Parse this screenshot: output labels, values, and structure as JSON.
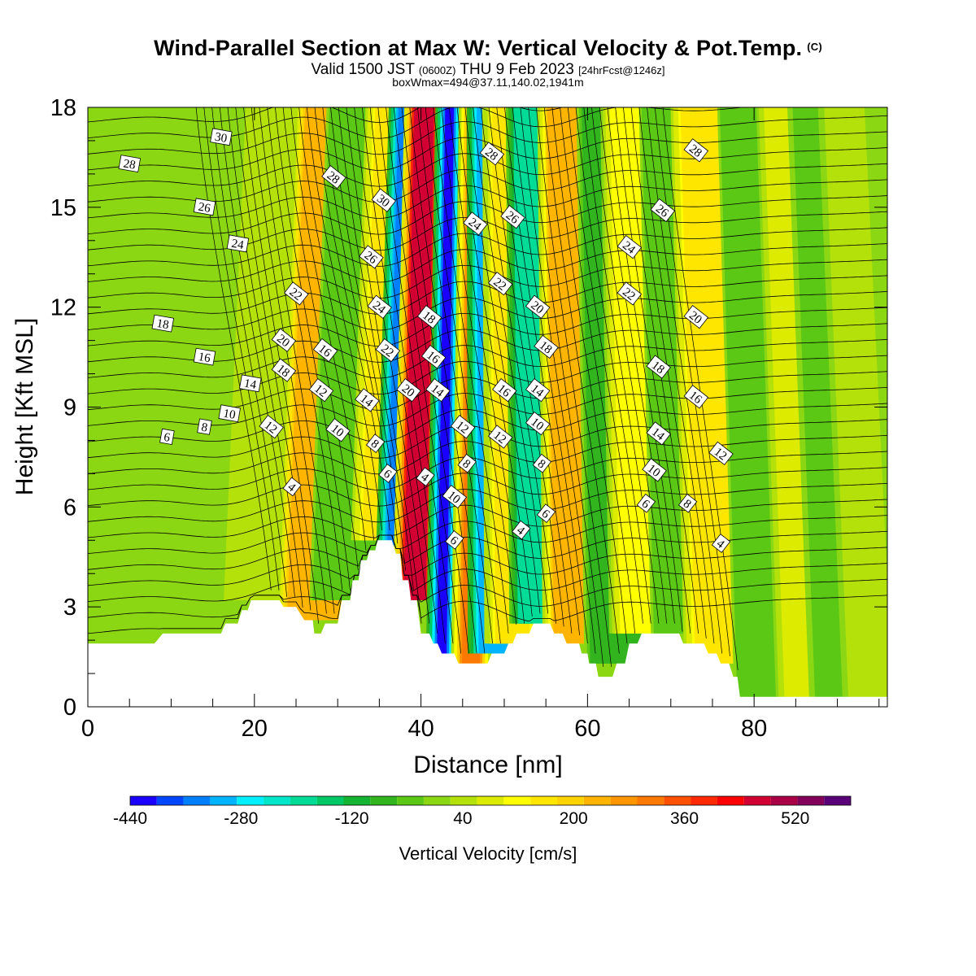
{
  "header": {
    "title": "Wind-Parallel Section at Max W: Vertical Velocity & Pot.Temp.",
    "copyright": "(C)",
    "valid_prefix": "Valid 1500 JST",
    "valid_utc": "(0600Z)",
    "valid_date": "THU 9 Feb 2023",
    "forecast": "[24hrFcst@1246z]",
    "box_info": "boxWmax=494@37.11,140.02,1941m"
  },
  "chart_data": {
    "type": "heatmap",
    "subtype": "vertical cross-section with filled vertical-velocity shading and potential-temperature contours",
    "xlabel": "Distance [nm]",
    "ylabel": "Height [Kft MSL]",
    "xlim": [
      0,
      96
    ],
    "ylim": [
      0,
      18
    ],
    "x_ticks": [
      0,
      20,
      40,
      60,
      80
    ],
    "y_ticks": [
      0,
      3,
      6,
      9,
      12,
      15,
      18
    ],
    "colorbar": {
      "label": "Vertical Velocity [cm/s]",
      "tick_labels": [
        "-440",
        "-280",
        "-120",
        "40",
        "200",
        "360",
        "520"
      ],
      "tick_values": [
        -440,
        -280,
        -120,
        40,
        200,
        360,
        520
      ],
      "range": [
        -440,
        600
      ],
      "step": 40,
      "colors": [
        "#1a00ff",
        "#0046ff",
        "#0080ff",
        "#00b4ff",
        "#00f0ff",
        "#00e6c8",
        "#00dc96",
        "#00c864",
        "#14b432",
        "#32b41e",
        "#5ac814",
        "#8cd714",
        "#b4e10a",
        "#dceb00",
        "#ffff00",
        "#ffe600",
        "#ffd200",
        "#ffb400",
        "#ff9600",
        "#ff7800",
        "#ff5000",
        "#ff2800",
        "#ff0000",
        "#d20032",
        "#aa0046",
        "#82005a",
        "#5a0078"
      ]
    },
    "terrain_kft": [
      [
        0,
        1.9
      ],
      [
        8,
        1.9
      ],
      [
        9,
        2.2
      ],
      [
        16,
        2.2
      ],
      [
        16.5,
        2.5
      ],
      [
        18,
        2.5
      ],
      [
        18.5,
        2.9
      ],
      [
        19.2,
        2.9
      ],
      [
        19.6,
        3.2
      ],
      [
        23,
        3.2
      ],
      [
        23.5,
        3.0
      ],
      [
        25,
        3.0
      ],
      [
        26,
        2.6
      ],
      [
        27,
        2.6
      ],
      [
        27.2,
        2.2
      ],
      [
        28,
        2.2
      ],
      [
        28.5,
        2.5
      ],
      [
        30,
        2.5
      ],
      [
        30.5,
        3.2
      ],
      [
        31.5,
        3.2
      ],
      [
        31.8,
        3.8
      ],
      [
        32.5,
        3.8
      ],
      [
        32.8,
        4.4
      ],
      [
        33.5,
        4.4
      ],
      [
        33.8,
        4.7
      ],
      [
        34.5,
        4.7
      ],
      [
        34.8,
        5.0
      ],
      [
        36.5,
        5.0
      ],
      [
        37,
        4.6
      ],
      [
        37.5,
        4.6
      ],
      [
        37.8,
        3.8
      ],
      [
        38.5,
        3.8
      ],
      [
        38.8,
        3.2
      ],
      [
        39.5,
        3.2
      ],
      [
        40,
        2.2
      ],
      [
        41,
        2.2
      ],
      [
        41.5,
        1.9
      ],
      [
        42,
        1.9
      ],
      [
        42.5,
        1.6
      ],
      [
        44,
        1.6
      ],
      [
        44.5,
        1.3
      ],
      [
        48,
        1.3
      ],
      [
        48.5,
        1.6
      ],
      [
        50,
        1.6
      ],
      [
        50.5,
        1.9
      ],
      [
        51,
        1.9
      ],
      [
        51.5,
        2.2
      ],
      [
        53,
        2.2
      ],
      [
        53.5,
        2.5
      ],
      [
        55.5,
        2.5
      ],
      [
        56,
        2.2
      ],
      [
        57,
        2.2
      ],
      [
        57.5,
        1.9
      ],
      [
        59,
        1.9
      ],
      [
        59.3,
        1.6
      ],
      [
        60,
        1.6
      ],
      [
        60.2,
        1.3
      ],
      [
        61,
        1.3
      ],
      [
        61.3,
        0.9
      ],
      [
        63,
        0.9
      ],
      [
        63.5,
        1.3
      ],
      [
        64.5,
        1.3
      ],
      [
        65,
        1.9
      ],
      [
        66,
        1.9
      ],
      [
        66.5,
        2.2
      ],
      [
        71,
        2.2
      ],
      [
        71.5,
        1.9
      ],
      [
        74,
        1.9
      ],
      [
        74.5,
        1.6
      ],
      [
        75.5,
        1.6
      ],
      [
        76,
        1.3
      ],
      [
        77,
        1.3
      ],
      [
        77.5,
        0.9
      ],
      [
        78,
        0.9
      ],
      [
        78.3,
        0.3
      ],
      [
        96,
        0.3
      ]
    ],
    "vertical_velocity_bands": [
      {
        "x_low": 6,
        "x_high": 7,
        "w_max": 20
      },
      {
        "x_low": 11,
        "x_high": 11,
        "w_max": 20
      },
      {
        "x_low": 17,
        "x_high": 23,
        "w_max": 60
      },
      {
        "x_low": 24,
        "x_high": 30,
        "w_max": 260
      },
      {
        "x_low": 28,
        "x_high": 34,
        "w_max": -40
      },
      {
        "x_low": 33,
        "x_high": 37,
        "w_max": 180
      },
      {
        "x_low": 36,
        "x_high": 39,
        "w_max": -360
      },
      {
        "x_low": 38,
        "x_high": 40.5,
        "w_max": 494
      },
      {
        "x_low": 42,
        "x_high": 43,
        "w_max": -420
      },
      {
        "x_low": 45,
        "x_high": 47,
        "w_max": 340
      },
      {
        "x_low": 47,
        "x_high": 51,
        "w_max": -320
      },
      {
        "x_low": 49,
        "x_high": 53,
        "w_max": 160
      },
      {
        "x_low": 52,
        "x_high": 56,
        "w_max": -200
      },
      {
        "x_low": 56,
        "x_high": 61,
        "w_max": 240
      },
      {
        "x_low": 61,
        "x_high": 66,
        "w_max": -80
      },
      {
        "x_low": 64,
        "x_high": 70,
        "w_max": 120
      },
      {
        "x_low": 69,
        "x_high": 73,
        "w_max": -40
      },
      {
        "x_low": 73,
        "x_high": 79,
        "w_max": 180
      },
      {
        "x_low": 79,
        "x_high": 83,
        "w_max": -40
      },
      {
        "x_low": 84,
        "x_high": 87,
        "w_max": 100
      },
      {
        "x_low": 88,
        "x_high": 90,
        "w_max": -20
      },
      {
        "x_low": 92,
        "x_high": 96,
        "w_max": 60
      }
    ],
    "contour_labels": [
      {
        "text": "30",
        "x": 16,
        "y": 17.1
      },
      {
        "text": "28",
        "x": 5,
        "y": 16.3
      },
      {
        "text": "26",
        "x": 14,
        "y": 15.0
      },
      {
        "text": "24",
        "x": 18,
        "y": 13.9
      },
      {
        "text": "22",
        "x": 25,
        "y": 12.4
      },
      {
        "text": "20",
        "x": 23.5,
        "y": 11.0
      },
      {
        "text": "18",
        "x": 9,
        "y": 11.5
      },
      {
        "text": "16",
        "x": 14,
        "y": 10.5
      },
      {
        "text": "18",
        "x": 23.5,
        "y": 10.1
      },
      {
        "text": "16",
        "x": 28.5,
        "y": 10.7
      },
      {
        "text": "14",
        "x": 19.5,
        "y": 9.7
      },
      {
        "text": "12",
        "x": 28,
        "y": 9.5
      },
      {
        "text": "10",
        "x": 17,
        "y": 8.8
      },
      {
        "text": "8",
        "x": 14,
        "y": 8.4
      },
      {
        "text": "6",
        "x": 9.5,
        "y": 8.1
      },
      {
        "text": "12",
        "x": 22,
        "y": 8.4
      },
      {
        "text": "10",
        "x": 30,
        "y": 8.3
      },
      {
        "text": "4",
        "x": 24.5,
        "y": 6.6
      },
      {
        "text": "28",
        "x": 29.5,
        "y": 15.9
      },
      {
        "text": "30",
        "x": 35.5,
        "y": 15.2
      },
      {
        "text": "26",
        "x": 34,
        "y": 13.5
      },
      {
        "text": "24",
        "x": 35,
        "y": 12.0
      },
      {
        "text": "22",
        "x": 36,
        "y": 10.7
      },
      {
        "text": "14",
        "x": 33.5,
        "y": 9.2
      },
      {
        "text": "8",
        "x": 34.5,
        "y": 7.9
      },
      {
        "text": "6",
        "x": 36,
        "y": 7.0
      },
      {
        "text": "20",
        "x": 38.5,
        "y": 9.5
      },
      {
        "text": "18",
        "x": 41,
        "y": 11.7
      },
      {
        "text": "16",
        "x": 41.5,
        "y": 10.5
      },
      {
        "text": "14",
        "x": 42,
        "y": 9.5
      },
      {
        "text": "4",
        "x": 40.5,
        "y": 6.9
      },
      {
        "text": "12",
        "x": 45,
        "y": 8.4
      },
      {
        "text": "8",
        "x": 45.5,
        "y": 7.3
      },
      {
        "text": "10",
        "x": 44,
        "y": 6.3
      },
      {
        "text": "6",
        "x": 44,
        "y": 5.0
      },
      {
        "text": "28",
        "x": 48.5,
        "y": 16.6
      },
      {
        "text": "24",
        "x": 46.5,
        "y": 14.5
      },
      {
        "text": "26",
        "x": 51,
        "y": 14.7
      },
      {
        "text": "22",
        "x": 49.5,
        "y": 12.7
      },
      {
        "text": "20",
        "x": 54,
        "y": 12.0
      },
      {
        "text": "18",
        "x": 55,
        "y": 10.8
      },
      {
        "text": "16",
        "x": 50,
        "y": 9.5
      },
      {
        "text": "14",
        "x": 54,
        "y": 9.5
      },
      {
        "text": "12",
        "x": 49.5,
        "y": 8.1
      },
      {
        "text": "10",
        "x": 54,
        "y": 8.5
      },
      {
        "text": "8",
        "x": 54.5,
        "y": 7.3
      },
      {
        "text": "6",
        "x": 55,
        "y": 5.8
      },
      {
        "text": "4",
        "x": 52,
        "y": 5.3
      },
      {
        "text": "28",
        "x": 73,
        "y": 16.7
      },
      {
        "text": "26",
        "x": 69,
        "y": 14.9
      },
      {
        "text": "24",
        "x": 65,
        "y": 13.8
      },
      {
        "text": "22",
        "x": 65,
        "y": 12.4
      },
      {
        "text": "20",
        "x": 73,
        "y": 11.7
      },
      {
        "text": "18",
        "x": 68.5,
        "y": 10.2
      },
      {
        "text": "16",
        "x": 73,
        "y": 9.3
      },
      {
        "text": "14",
        "x": 68.5,
        "y": 8.2
      },
      {
        "text": "12",
        "x": 76,
        "y": 7.6
      },
      {
        "text": "10",
        "x": 68,
        "y": 7.1
      },
      {
        "text": "8",
        "x": 72,
        "y": 6.1
      },
      {
        "text": "6",
        "x": 67,
        "y": 6.1
      },
      {
        "text": "4",
        "x": 76,
        "y": 4.9
      }
    ]
  }
}
